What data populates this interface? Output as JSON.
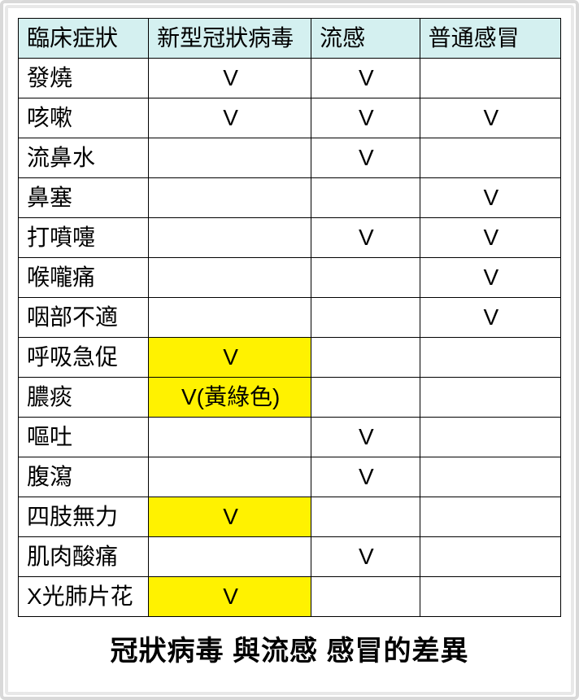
{
  "table": {
    "header_bg": "#d4f0f0",
    "highlight_bg": "#fff200",
    "border_color": "#000000",
    "font_size": 28,
    "columns": [
      "臨床症狀",
      "新型冠狀病毒",
      "流感",
      "普通感冒"
    ],
    "col_widths_pct": [
      24,
      30,
      20,
      26
    ],
    "rows": [
      {
        "symptom": "發燒",
        "cells": [
          {
            "v": "V",
            "hl": false
          },
          {
            "v": "V",
            "hl": false
          },
          {
            "v": "",
            "hl": false
          }
        ]
      },
      {
        "symptom": "咳嗽",
        "cells": [
          {
            "v": "V",
            "hl": false
          },
          {
            "v": "V",
            "hl": false
          },
          {
            "v": "V",
            "hl": false
          }
        ]
      },
      {
        "symptom": "流鼻水",
        "cells": [
          {
            "v": "",
            "hl": false
          },
          {
            "v": "V",
            "hl": false
          },
          {
            "v": "",
            "hl": false
          }
        ]
      },
      {
        "symptom": "鼻塞",
        "cells": [
          {
            "v": "",
            "hl": false
          },
          {
            "v": "",
            "hl": false
          },
          {
            "v": "V",
            "hl": false
          }
        ]
      },
      {
        "symptom": "打噴嚏",
        "cells": [
          {
            "v": "",
            "hl": false
          },
          {
            "v": "V",
            "hl": false
          },
          {
            "v": "V",
            "hl": false
          }
        ]
      },
      {
        "symptom": "喉嚨痛",
        "cells": [
          {
            "v": "",
            "hl": false
          },
          {
            "v": "",
            "hl": false
          },
          {
            "v": "V",
            "hl": false
          }
        ]
      },
      {
        "symptom": "咽部不適",
        "cells": [
          {
            "v": "",
            "hl": false
          },
          {
            "v": "",
            "hl": false
          },
          {
            "v": "V",
            "hl": false
          }
        ]
      },
      {
        "symptom": "呼吸急促",
        "cells": [
          {
            "v": "V",
            "hl": true
          },
          {
            "v": "",
            "hl": false
          },
          {
            "v": "",
            "hl": false
          }
        ]
      },
      {
        "symptom": "膿痰",
        "cells": [
          {
            "v": "V(黃綠色)",
            "hl": true
          },
          {
            "v": "",
            "hl": false
          },
          {
            "v": "",
            "hl": false
          }
        ]
      },
      {
        "symptom": "嘔吐",
        "cells": [
          {
            "v": "",
            "hl": false
          },
          {
            "v": "V",
            "hl": false
          },
          {
            "v": "",
            "hl": false
          }
        ]
      },
      {
        "symptom": "腹瀉",
        "cells": [
          {
            "v": "",
            "hl": false
          },
          {
            "v": "V",
            "hl": false
          },
          {
            "v": "",
            "hl": false
          }
        ]
      },
      {
        "symptom": "四肢無力",
        "cells": [
          {
            "v": "V",
            "hl": true
          },
          {
            "v": "",
            "hl": false
          },
          {
            "v": "",
            "hl": false
          }
        ]
      },
      {
        "symptom": "肌肉酸痛",
        "cells": [
          {
            "v": "",
            "hl": false
          },
          {
            "v": "V",
            "hl": false
          },
          {
            "v": "",
            "hl": false
          }
        ]
      },
      {
        "symptom": "X光肺片花",
        "cells": [
          {
            "v": "V",
            "hl": true
          },
          {
            "v": "",
            "hl": false
          },
          {
            "v": "",
            "hl": false
          }
        ]
      }
    ]
  },
  "caption": "冠狀病毒 與流感 感冒的差異"
}
